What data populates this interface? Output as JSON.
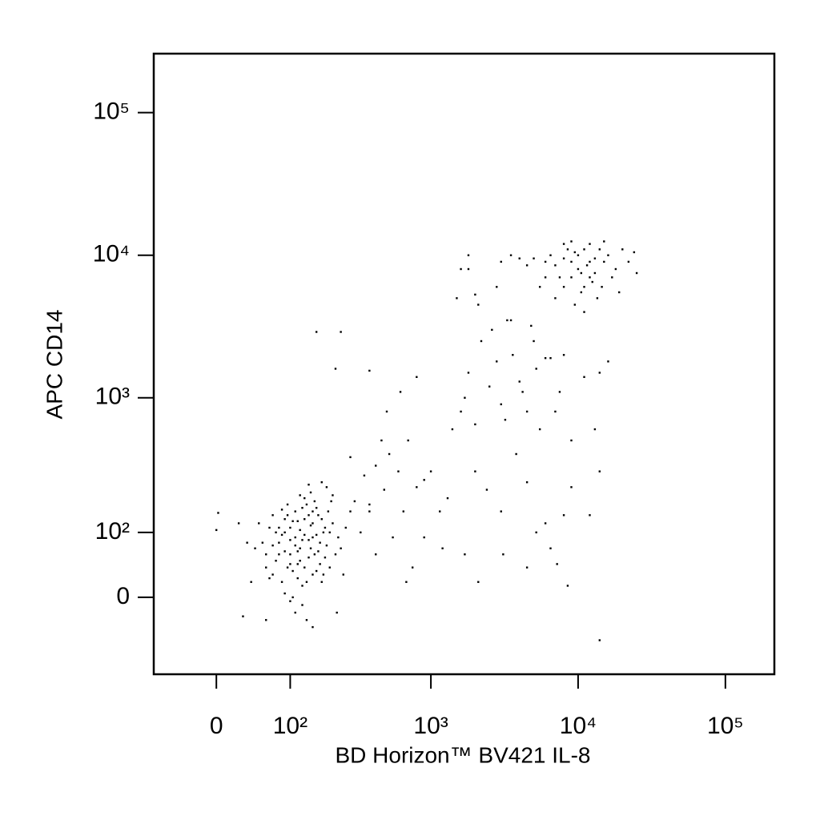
{
  "chart_data": {
    "type": "scatter",
    "xlabel": "BD Horizon™ BV421 IL-8",
    "ylabel": "APC CD14",
    "xscale": "biexponential",
    "yscale": "biexponential",
    "color": "#000000",
    "xlim": [
      -80,
      215000
    ],
    "ylim": [
      -127,
      259000
    ],
    "xticks": [
      0,
      {
        "value": 100,
        "label": "10²"
      },
      {
        "value": 1000,
        "label": "10³"
      },
      {
        "value": 10000,
        "label": "10⁴"
      },
      {
        "value": 100000,
        "label": "10⁵"
      }
    ],
    "yticks": [
      0,
      {
        "value": 100,
        "label": "10²"
      },
      {
        "value": 1000,
        "label": "10³"
      },
      {
        "value": 10000,
        "label": "10⁴"
      },
      {
        "value": 100000,
        "label": "10⁵"
      }
    ],
    "x": [
      120,
      95,
      150,
      80,
      135,
      60,
      175,
      110,
      140,
      100,
      190,
      70,
      125,
      160,
      85,
      115,
      145,
      55,
      200,
      130,
      105,
      165,
      90,
      75,
      180,
      125,
      150,
      95,
      110,
      210,
      65,
      140,
      100,
      170,
      85,
      120,
      155,
      45,
      230,
      130,
      90,
      115,
      185,
      70,
      105,
      160,
      135,
      80,
      145,
      195,
      60,
      125,
      100,
      175,
      110,
      150,
      90,
      220,
      130,
      75,
      165,
      115,
      95,
      140,
      205,
      50,
      120,
      185,
      100,
      155,
      85,
      130,
      170,
      110,
      65,
      145,
      240,
      105,
      125,
      90,
      160,
      135,
      80,
      200,
      115,
      150,
      70,
      180,
      120,
      100,
      40,
      260,
      30,
      25,
      140,
      175,
      60,
      225,
      210,
      280,
      35,
      150,
      190,
      250,
      2,
      0,
      300,
      350,
      420,
      480,
      520,
      600,
      700,
      800,
      900,
      650,
      550,
      420,
      750,
      900,
      380,
      460,
      620,
      800,
      500,
      1000,
      1150,
      1300,
      1400,
      1200,
      680,
      280,
      380,
      330,
      160,
      240,
      380,
      220,
      1600,
      1700,
      1800,
      2000,
      2200,
      2500,
      2800,
      3000,
      3300,
      3600,
      4000,
      4500,
      5000,
      5500,
      6000,
      7000,
      8000,
      9000,
      2100,
      2600,
      3200,
      3800,
      4200,
      4800,
      5200,
      6500,
      7500,
      11000,
      14000,
      13000,
      16000,
      2000,
      3000,
      4500,
      6000,
      8000,
      9000,
      12000,
      14000,
      1700,
      2100,
      3100,
      4500,
      7200,
      8500,
      14000,
      5200,
      6500,
      2400,
      3500,
      1500,
      2000,
      1800,
      2800,
      10000,
      9000,
      12000,
      8000,
      11000,
      7000,
      13000,
      9500,
      15000,
      6000,
      10500,
      8500,
      12500,
      14000,
      5000,
      11500,
      9000,
      16000,
      7500,
      13500,
      10000,
      6500,
      18000,
      22000,
      25000,
      20000,
      8000,
      12000,
      4000,
      4500,
      3500,
      3000,
      1800,
      1600,
      9500,
      11000,
      7000,
      14500,
      17000,
      10500,
      9000,
      11000,
      6000,
      8000,
      12000,
      5500,
      15000,
      13000,
      24000,
      19000
    ],
    "values": [
      70,
      40,
      90,
      110,
      20,
      60,
      130,
      150,
      55,
      85,
      75,
      30,
      -10,
      160,
      95,
      45,
      115,
      80,
      40,
      190,
      0,
      65,
      130,
      50,
      100,
      85,
      30,
      170,
      -20,
      120,
      110,
      140,
      60,
      45,
      20,
      105,
      180,
      70,
      90,
      40,
      65,
      125,
      55,
      140,
      35,
      95,
      -30,
      80,
      70,
      150,
      40,
      160,
      110,
      20,
      75,
      120,
      5,
      60,
      95,
      100,
      140,
      25,
      140,
      85,
      180,
      120,
      50,
      110,
      -5,
      60,
      155,
      130,
      80,
      90,
      25,
      210,
      70,
      125,
      15,
      100,
      35,
      170,
      60,
      100,
      65,
      150,
      75,
      30,
      200,
      45,
      20,
      110,
      -25,
      120,
      240,
      250,
      -30,
      -20,
      200,
      150,
      80,
      -40,
      230,
      30,
      146,
      105,
      180,
      280,
      330,
      220,
      400,
      300,
      500,
      230,
      260,
      150,
      90,
      60,
      40,
      90,
      150,
      500,
      1100,
      1400,
      800,
      300,
      150,
      190,
      600,
      70,
      20,
      380,
      170,
      100,
      2900,
      2900,
      1550,
      1600,
      800,
      1000,
      1500,
      650,
      2500,
      1200,
      1800,
      900,
      3500,
      2000,
      1300,
      800,
      2500,
      600,
      1900,
      800,
      2000,
      500,
      4500,
      3000,
      700,
      400,
      1100,
      3200,
      1600,
      1900,
      1100,
      1400,
      1500,
      600,
      1800,
      300,
      150,
      250,
      120,
      140,
      230,
      140,
      300,
      60,
      20,
      60,
      40,
      45,
      15,
      -60,
      100,
      70,
      220,
      3500,
      5000,
      5300,
      8000,
      6000,
      8000,
      7000,
      9000,
      9500,
      6000,
      8500,
      7500,
      10500,
      9000,
      9000,
      5500,
      11000,
      6500,
      11000,
      9500,
      8500,
      12500,
      10000,
      7000,
      5000,
      10000,
      10000,
      8000,
      9000,
      7500,
      11000,
      6000,
      12000,
      9500,
      8500,
      10000,
      9000,
      10000,
      8000,
      4500,
      4000,
      5000,
      6000,
      7000,
      7500,
      9000,
      11000,
      7000,
      12000,
      7000,
      6000,
      12500,
      9500,
      10500,
      5500
    ]
  }
}
